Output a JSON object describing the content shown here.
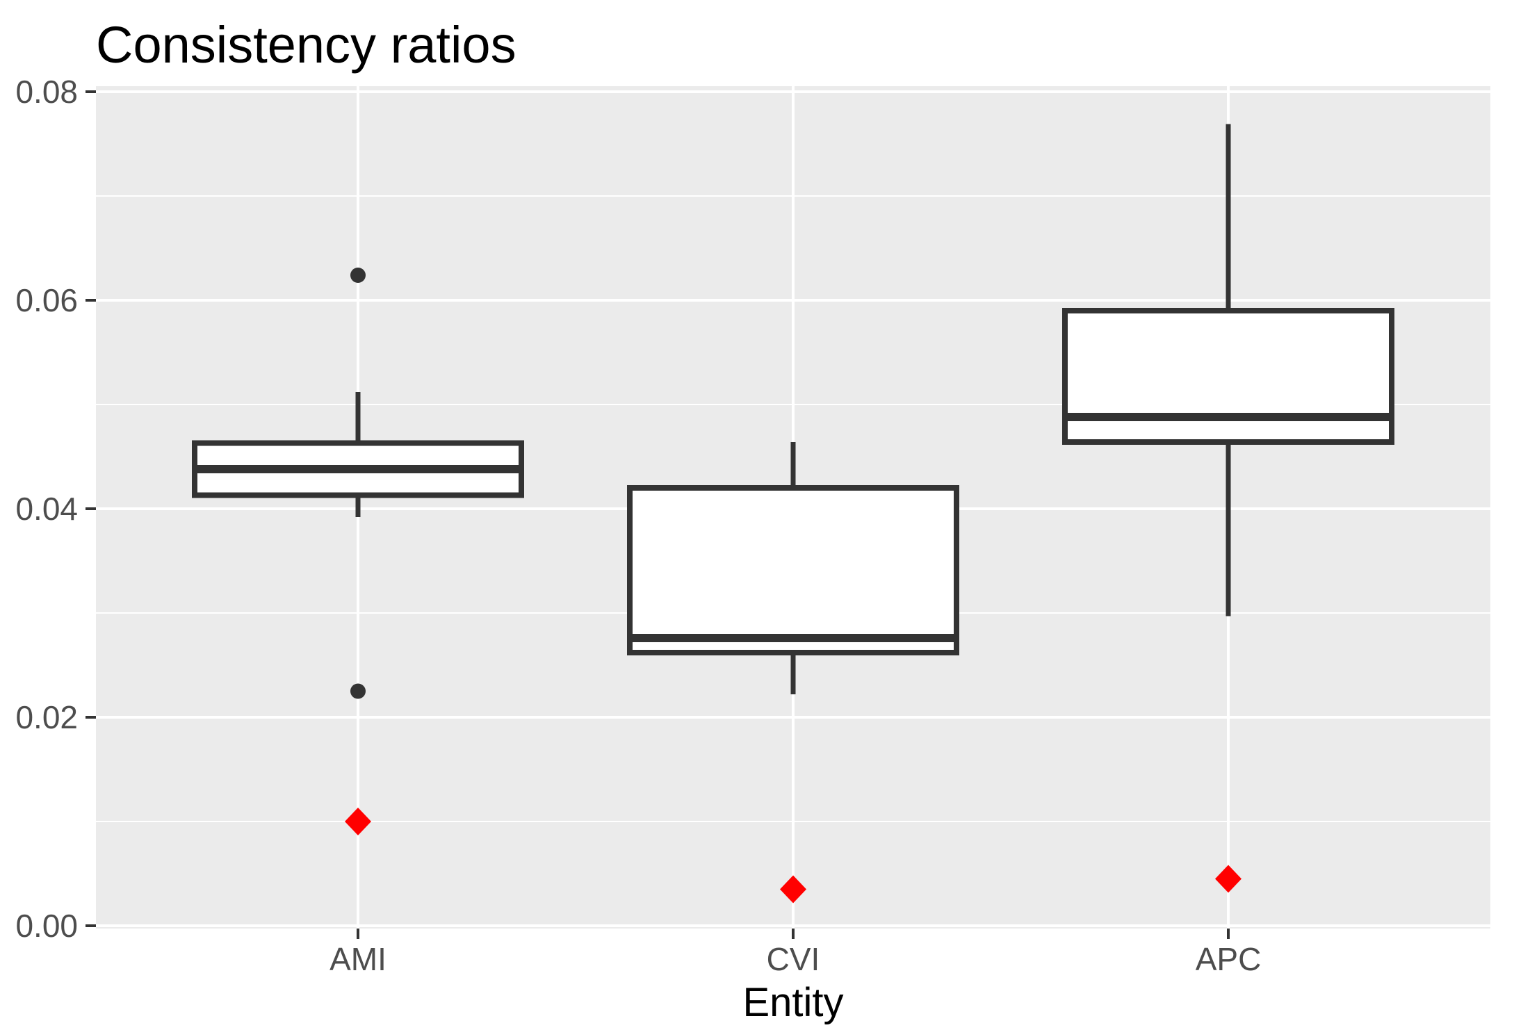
{
  "title": "Consistency ratios",
  "chart_data": {
    "type": "boxplot",
    "title": "Consistency ratios",
    "xlabel": "Entity",
    "ylabel": "",
    "categories": [
      "AMI",
      "CVI",
      "APC"
    ],
    "ylim": [
      0.0,
      0.08
    ],
    "yticks": [
      0.0,
      0.02,
      0.04,
      0.06,
      0.08
    ],
    "ytick_labels": [
      "0.00",
      "0.02",
      "0.04",
      "0.06",
      "0.08"
    ],
    "yticks_minor": [
      0.01,
      0.03,
      0.05,
      0.07
    ],
    "grid": "major+minor, white on grey panel",
    "legend_position": "none",
    "series": [
      {
        "category": "AMI",
        "whisker_low": 0.0392,
        "q1": 0.0413,
        "median": 0.0438,
        "q3": 0.0463,
        "whisker_high": 0.0512,
        "outliers": [
          0.0624,
          0.0225
        ],
        "mean_marker": 0.01
      },
      {
        "category": "CVI",
        "whisker_low": 0.0222,
        "q1": 0.0262,
        "median": 0.0276,
        "q3": 0.042,
        "whisker_high": 0.0464,
        "outliers": [],
        "mean_marker": 0.0035
      },
      {
        "category": "APC",
        "whisker_low": 0.0297,
        "q1": 0.0464,
        "median": 0.0488,
        "q3": 0.059,
        "whisker_high": 0.0769,
        "outliers": [],
        "mean_marker": 0.0045
      }
    ],
    "colors": {
      "panel_bg": "#EBEBEB",
      "gridline": "#FFFFFF",
      "box_stroke": "#333333",
      "box_fill": "#FFFFFF",
      "median": "#333333",
      "whisker": "#333333",
      "outlier": "#333333",
      "mean_marker": "#FF0000",
      "tick": "#333333",
      "tick_text": "#4D4D4D",
      "title_text": "#000000"
    }
  }
}
